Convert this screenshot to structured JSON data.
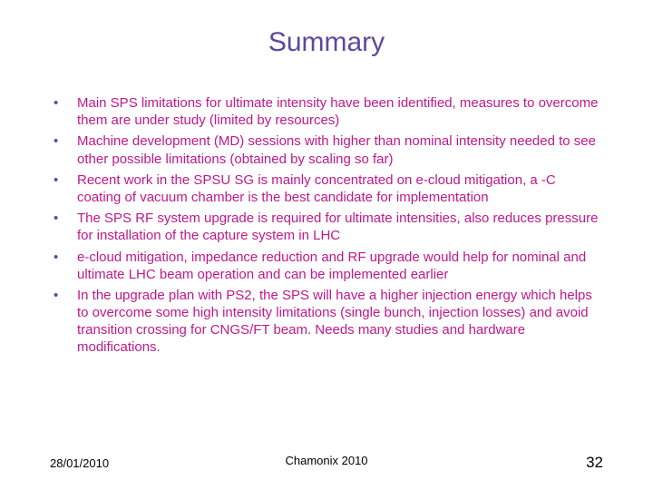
{
  "title": "Summary",
  "title_color": "#5b4a99",
  "bullet_color": "#5b4a99",
  "body_color": "#c0188c",
  "background_color": "#ffffff",
  "title_fontsize": 30,
  "body_fontsize": 15,
  "footer_fontsize": 13,
  "page_number_fontsize": 17,
  "bullets": [
    "Main SPS limitations for ultimate intensity have been identified, measures to overcome them are under study (limited by resources)",
    "Machine development (MD) sessions with higher than nominal intensity needed to see other possible limitations (obtained by scaling so far)",
    "Recent work in the SPSU SG is mainly concentrated on e-cloud mitigation, a -C coating of vacuum chamber is the best candidate for implementation",
    "The SPS RF system upgrade is required for ultimate intensities, also reduces pressure for installation of the capture system in LHC",
    "e-cloud mitigation, impedance reduction and RF upgrade would help for nominal and ultimate LHC beam operation and can be implemented earlier",
    "In the upgrade plan with PS2, the SPS will have a higher injection energy which helps to overcome some high intensity limitations (single bunch, injection losses) and avoid transition crossing for CNGS/FT beam. Needs many studies and hardware modifications."
  ],
  "footer": {
    "date": "28/01/2010",
    "center": "Chamonix 2010",
    "page": "32"
  }
}
